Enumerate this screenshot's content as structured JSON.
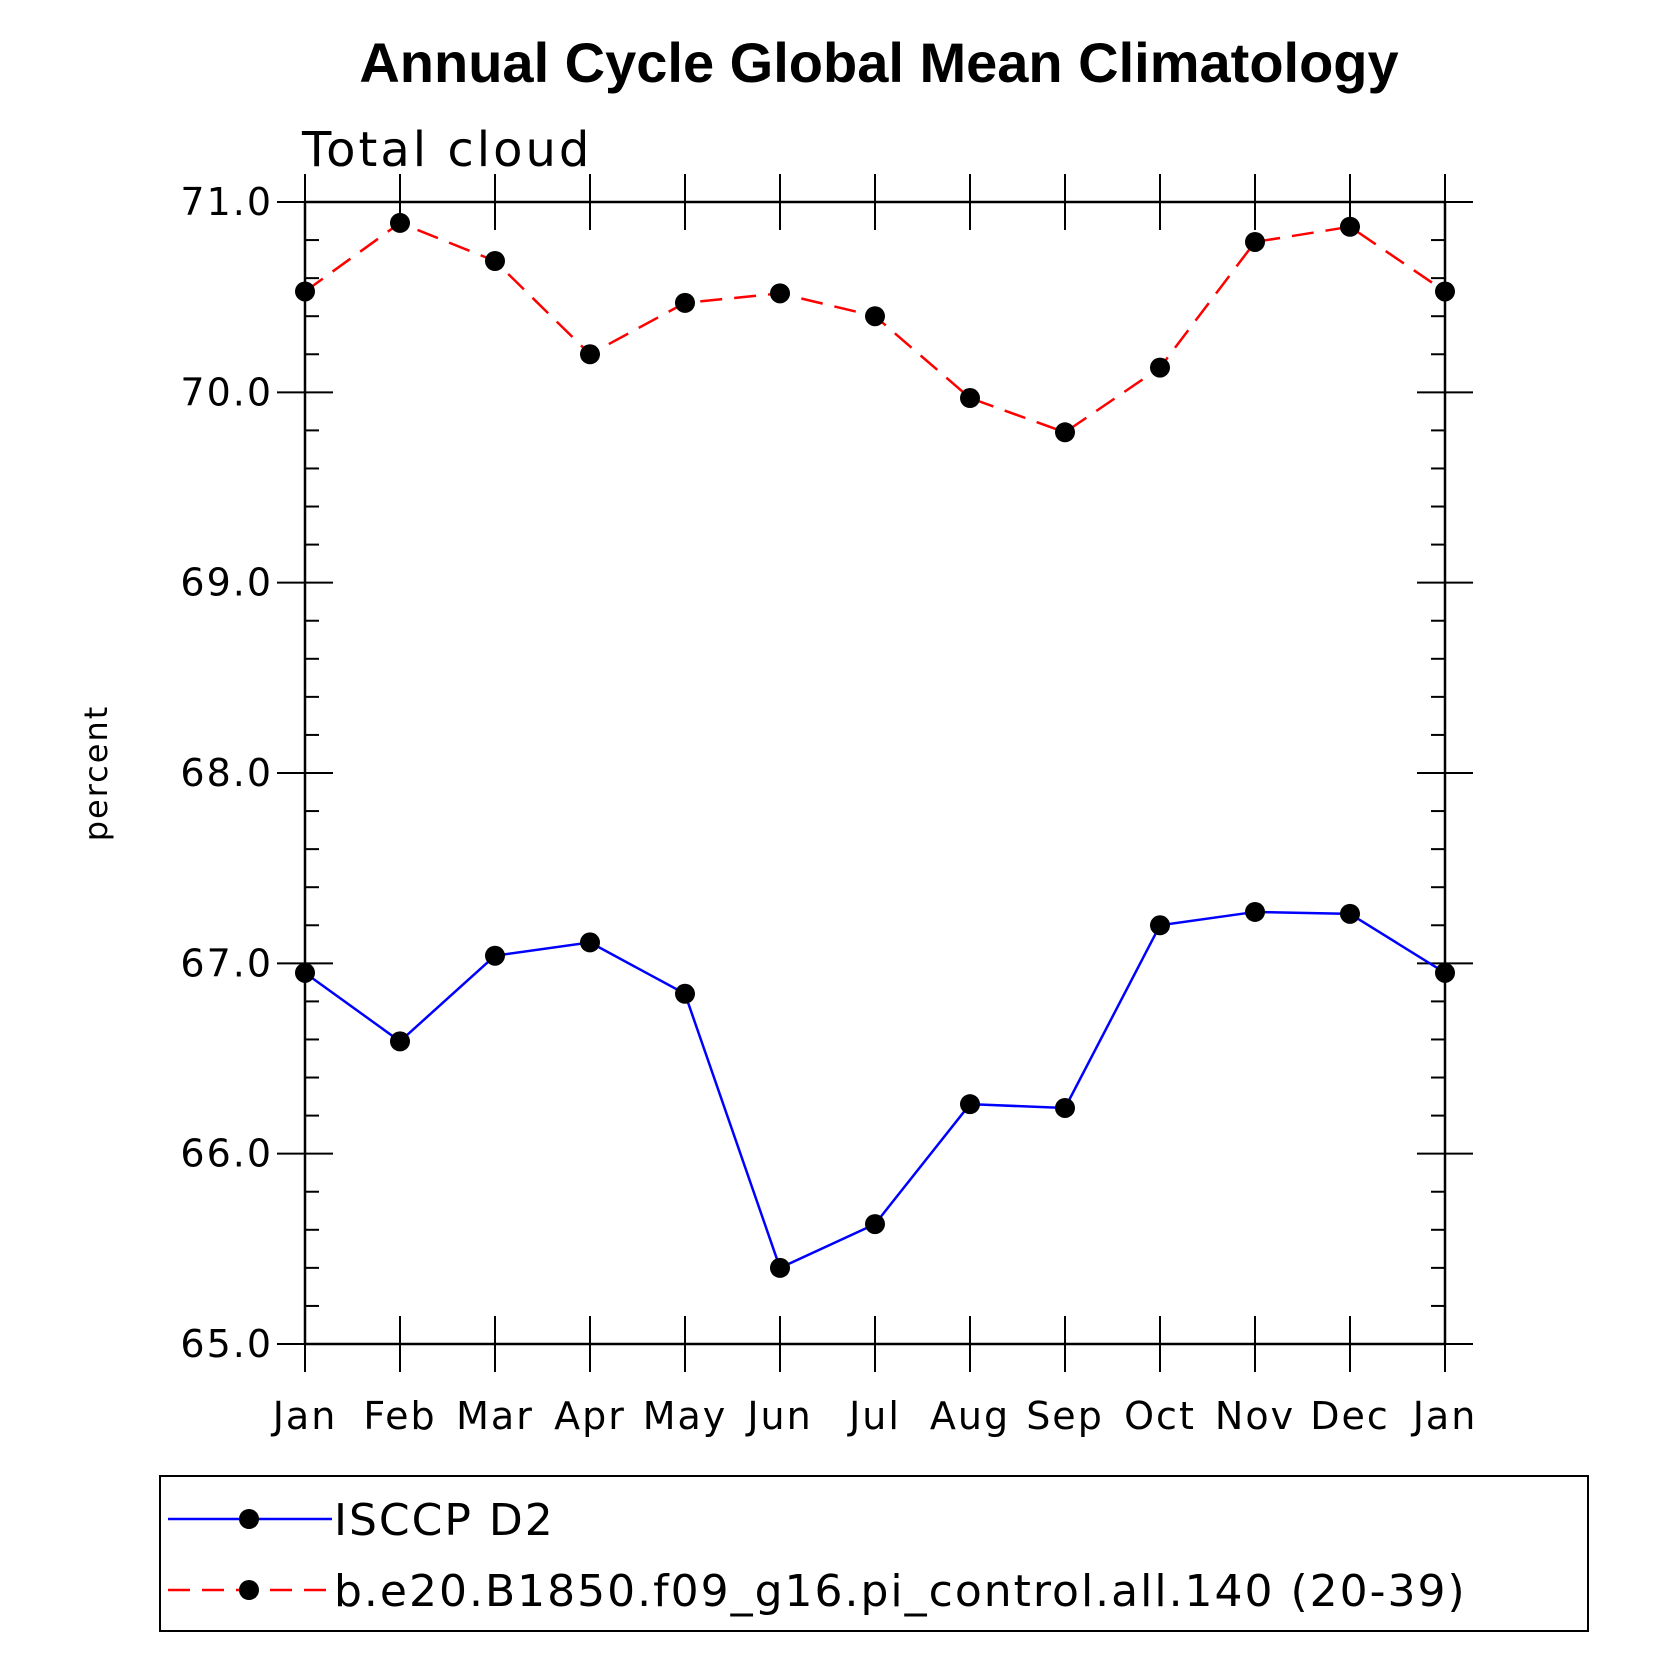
{
  "chart_data": {
    "type": "line",
    "title": "Annual Cycle Global Mean Climatology",
    "subtitle": "Total cloud",
    "xlabel": "",
    "ylabel": "percent",
    "categories": [
      "Jan",
      "Feb",
      "Mar",
      "Apr",
      "May",
      "Jun",
      "Jul",
      "Aug",
      "Sep",
      "Oct",
      "Nov",
      "Dec",
      "Jan"
    ],
    "ylim": [
      65.0,
      71.0
    ],
    "yticks": [
      "65.0",
      "66.0",
      "67.0",
      "68.0",
      "69.0",
      "70.0",
      "71.0"
    ],
    "grid": false,
    "legend_position": "bottom",
    "series": [
      {
        "name": "ISCCP D2",
        "color": "#0000ff",
        "dash": "solid",
        "marker": "filled-circle",
        "values": [
          66.95,
          66.59,
          67.04,
          67.11,
          66.84,
          65.4,
          65.63,
          66.26,
          66.24,
          67.2,
          67.27,
          67.26,
          66.95
        ]
      },
      {
        "name": "b.e20.B1850.f09_g16.pi_control.all.140 (20-39)",
        "color": "#ff0000",
        "dash": "dashed",
        "marker": "filled-circle",
        "values": [
          70.53,
          70.89,
          70.69,
          70.2,
          70.47,
          70.52,
          70.4,
          69.97,
          69.79,
          70.13,
          70.79,
          70.87,
          70.53
        ]
      }
    ]
  }
}
